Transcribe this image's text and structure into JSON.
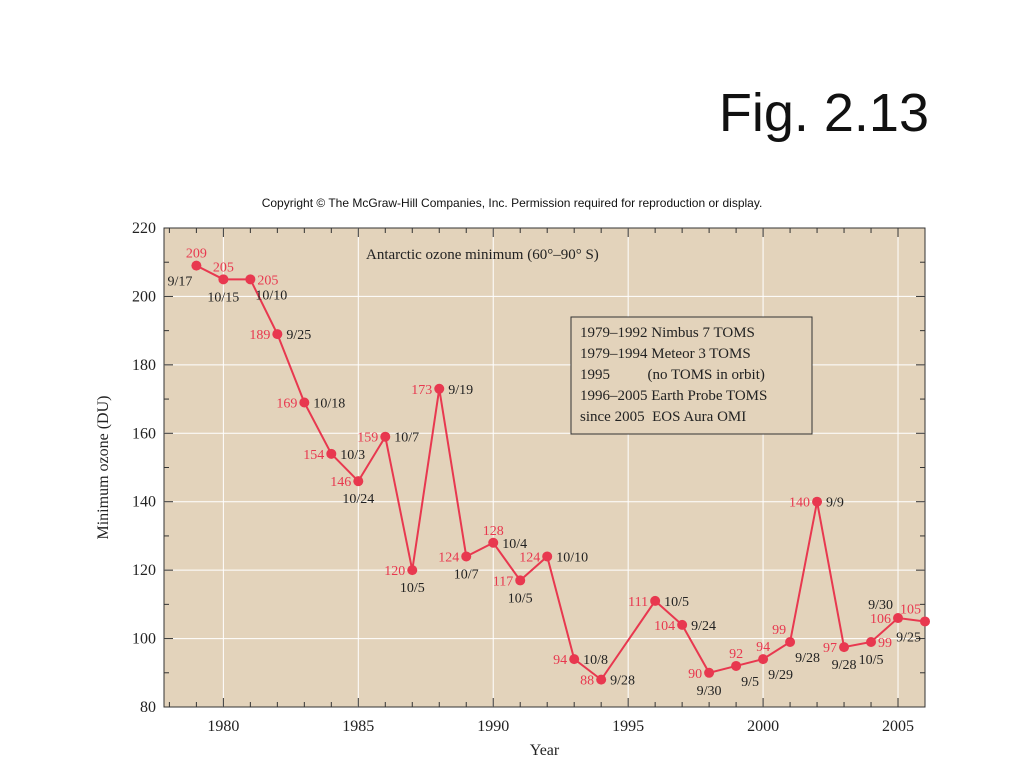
{
  "slide": {
    "title": "Fig. 2.13",
    "copyright": "Copyright © The McGraw-Hill Companies, Inc. Permission required for reproduction or display."
  },
  "colors": {
    "plot_bg": "#e3d3bb",
    "series": "#e8384f",
    "grid": "#ffffff",
    "text": "#222222"
  },
  "chart_data": {
    "type": "line",
    "title": "Antarctic ozone minimum (60°–90° S)",
    "xlabel": "Year",
    "ylabel": "Minimum ozone (DU)",
    "xlim": [
      1977.8,
      2006
    ],
    "ylim": [
      80,
      220
    ],
    "xticks": [
      1980,
      1985,
      1990,
      1995,
      2000,
      2005
    ],
    "yticks": [
      80,
      100,
      120,
      140,
      160,
      180,
      200,
      220
    ],
    "grid": true,
    "legend_position": "upper-right",
    "legend": [
      "1979–1992 Nimbus 7 TOMS",
      "1979–1994 Meteor 3 TOMS",
      "1995          (no TOMS in orbit)",
      "1996–2005 Earth Probe TOMS",
      "since 2005  EOS Aura OMI"
    ],
    "points": [
      {
        "x": 1979,
        "y": 209,
        "value": "209",
        "date": "9/17",
        "vpos": "above",
        "dpos": "below-left"
      },
      {
        "x": 1980,
        "y": 205,
        "value": "205",
        "date": "10/15",
        "vpos": "above",
        "dpos": "below"
      },
      {
        "x": 1981,
        "y": 205,
        "value": "205",
        "date": "10/10",
        "vpos": "right",
        "dpos": "below-right"
      },
      {
        "x": 1982,
        "y": 189,
        "value": "189",
        "date": "9/25",
        "vpos": "left",
        "dpos": "right"
      },
      {
        "x": 1983,
        "y": 169,
        "value": "169",
        "date": "10/18",
        "vpos": "left",
        "dpos": "right"
      },
      {
        "x": 1984,
        "y": 154,
        "value": "154",
        "date": "10/3",
        "vpos": "left",
        "dpos": "right"
      },
      {
        "x": 1985,
        "y": 146,
        "value": "146",
        "date": "10/24",
        "vpos": "left",
        "dpos": "below"
      },
      {
        "x": 1986,
        "y": 159,
        "value": "159",
        "date": "10/7",
        "vpos": "left",
        "dpos": "right"
      },
      {
        "x": 1987,
        "y": 120,
        "value": "120",
        "date": "10/5",
        "vpos": "left",
        "dpos": "below"
      },
      {
        "x": 1988,
        "y": 173,
        "value": "173",
        "date": "9/19",
        "vpos": "left",
        "dpos": "right"
      },
      {
        "x": 1989,
        "y": 124,
        "value": "124",
        "date": "10/7",
        "vpos": "left",
        "dpos": "below"
      },
      {
        "x": 1990,
        "y": 128,
        "value": "128",
        "date": "10/4",
        "vpos": "above",
        "dpos": "right"
      },
      {
        "x": 1991,
        "y": 117,
        "value": "117",
        "date": "10/5",
        "vpos": "left",
        "dpos": "below"
      },
      {
        "x": 1992,
        "y": 124,
        "value": "124",
        "date": "10/10",
        "vpos": "left",
        "dpos": "right"
      },
      {
        "x": 1993,
        "y": 94,
        "value": "94",
        "date": "10/8",
        "vpos": "left",
        "dpos": "right"
      },
      {
        "x": 1994,
        "y": 88,
        "value": "88",
        "date": "9/28",
        "vpos": "left",
        "dpos": "right"
      },
      {
        "x": 1996,
        "y": 111,
        "value": "111",
        "date": "10/5",
        "vpos": "left",
        "dpos": "right"
      },
      {
        "x": 1997,
        "y": 104,
        "value": "104",
        "date": "9/24",
        "vpos": "left",
        "dpos": "right"
      },
      {
        "x": 1998,
        "y": 90,
        "value": "90",
        "date": "9/30",
        "vpos": "left",
        "dpos": "below"
      },
      {
        "x": 1999,
        "y": 92,
        "value": "92",
        "date": "9/5",
        "vpos": "above",
        "dpos": "below-right"
      },
      {
        "x": 2000,
        "y": 94,
        "value": "94",
        "date": "9/29",
        "vpos": "above",
        "dpos": "below-right"
      },
      {
        "x": 2001,
        "y": 99,
        "value": "99",
        "date": "9/28",
        "vpos": "above-left",
        "dpos": "below-right"
      },
      {
        "x": 2002,
        "y": 140,
        "value": "140",
        "date": "9/9",
        "vpos": "left",
        "dpos": "right"
      },
      {
        "x": 2003,
        "y": 97.5,
        "value": "97",
        "date": "9/28",
        "vpos": "left",
        "dpos": "below"
      },
      {
        "x": 2004,
        "y": 99,
        "value": "99",
        "date": "10/5",
        "vpos": "right",
        "dpos": "below"
      },
      {
        "x": 2005,
        "y": 106,
        "value": "106",
        "date": "9/30",
        "vpos": "left",
        "dpos": "above-left"
      },
      {
        "x": 2006,
        "y": 105,
        "value": "105",
        "date": "9/25",
        "vpos": "above-left",
        "dpos": "below-left"
      }
    ]
  }
}
